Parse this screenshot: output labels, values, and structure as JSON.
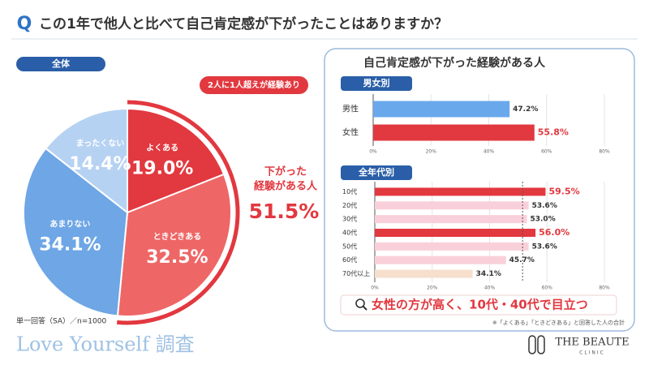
{
  "question": {
    "mark": "Q",
    "text": "この1年で他人と比べて自己肯定感が下がったことはありますか？"
  },
  "chart_data": [
    {
      "type": "pie",
      "title": "全体",
      "categories": [
        "よくある",
        "ときどきある",
        "あまりない",
        "まったくない"
      ],
      "values": [
        19.0,
        32.5,
        34.1,
        14.4
      ],
      "value_labels": [
        "19.0%",
        "32.5%",
        "34.1%",
        "14.4%"
      ],
      "colors": [
        "#e2383f",
        "#ef6666",
        "#6ea6e6",
        "#b6d2f3"
      ],
      "callout": "2人に1人超えが経験あり",
      "summary_label": [
        "下がった",
        "経験がある人"
      ],
      "summary_value": "51.5%"
    },
    {
      "type": "hbar",
      "title": "男女別",
      "categories": [
        "男性",
        "女性"
      ],
      "values": [
        47.2,
        55.8
      ],
      "value_labels": [
        "47.2%",
        "55.8%"
      ],
      "colors": [
        "#6aa8ec",
        "#e2383f"
      ],
      "xlim": [
        0,
        80
      ],
      "xticks": [
        {
          "value": 0,
          "label": "0%"
        },
        {
          "value": 20,
          "label": "20%"
        },
        {
          "value": 40,
          "label": "40%"
        },
        {
          "value": 60,
          "label": "60%"
        },
        {
          "value": 80,
          "label": "80%"
        }
      ],
      "grid": true
    },
    {
      "type": "hbar",
      "title": "全年代別",
      "categories": [
        "10代",
        "20代",
        "30代",
        "40代",
        "50代",
        "60代",
        "70代以上"
      ],
      "values": [
        59.5,
        53.6,
        53.0,
        56.0,
        53.6,
        45.7,
        34.1
      ],
      "value_labels": [
        "59.5%",
        "53.6%",
        "53.0%",
        "56.0%",
        "53.6%",
        "45.7%",
        "34.1%"
      ],
      "colors": [
        "#e2383f",
        "#f9d0d9",
        "#f9d0d9",
        "#e2383f",
        "#f9d0d9",
        "#f9d0d9",
        "#f6dfcd"
      ],
      "xlim": [
        0,
        80
      ],
      "xticks": [
        {
          "value": 0,
          "label": "0%"
        },
        {
          "value": 20,
          "label": "20%"
        },
        {
          "value": 40,
          "label": "40%"
        },
        {
          "value": 60,
          "label": "60%"
        },
        {
          "value": 80,
          "label": "80%"
        }
      ],
      "reference_line": 51.5,
      "grid": true
    }
  ],
  "panel_title": "自己肯定感が下がった経験がある人",
  "summary_note": "女性の方が高く、10代・40代で目立つ",
  "footnote": "※「よくある」「ときどきある」と回答した人の合計",
  "method": "単一回答（SA）／n=1000",
  "survey": "Love Yourself 調査",
  "brand": {
    "name": "THE BEAUTE",
    "sub": "CLINIC"
  }
}
